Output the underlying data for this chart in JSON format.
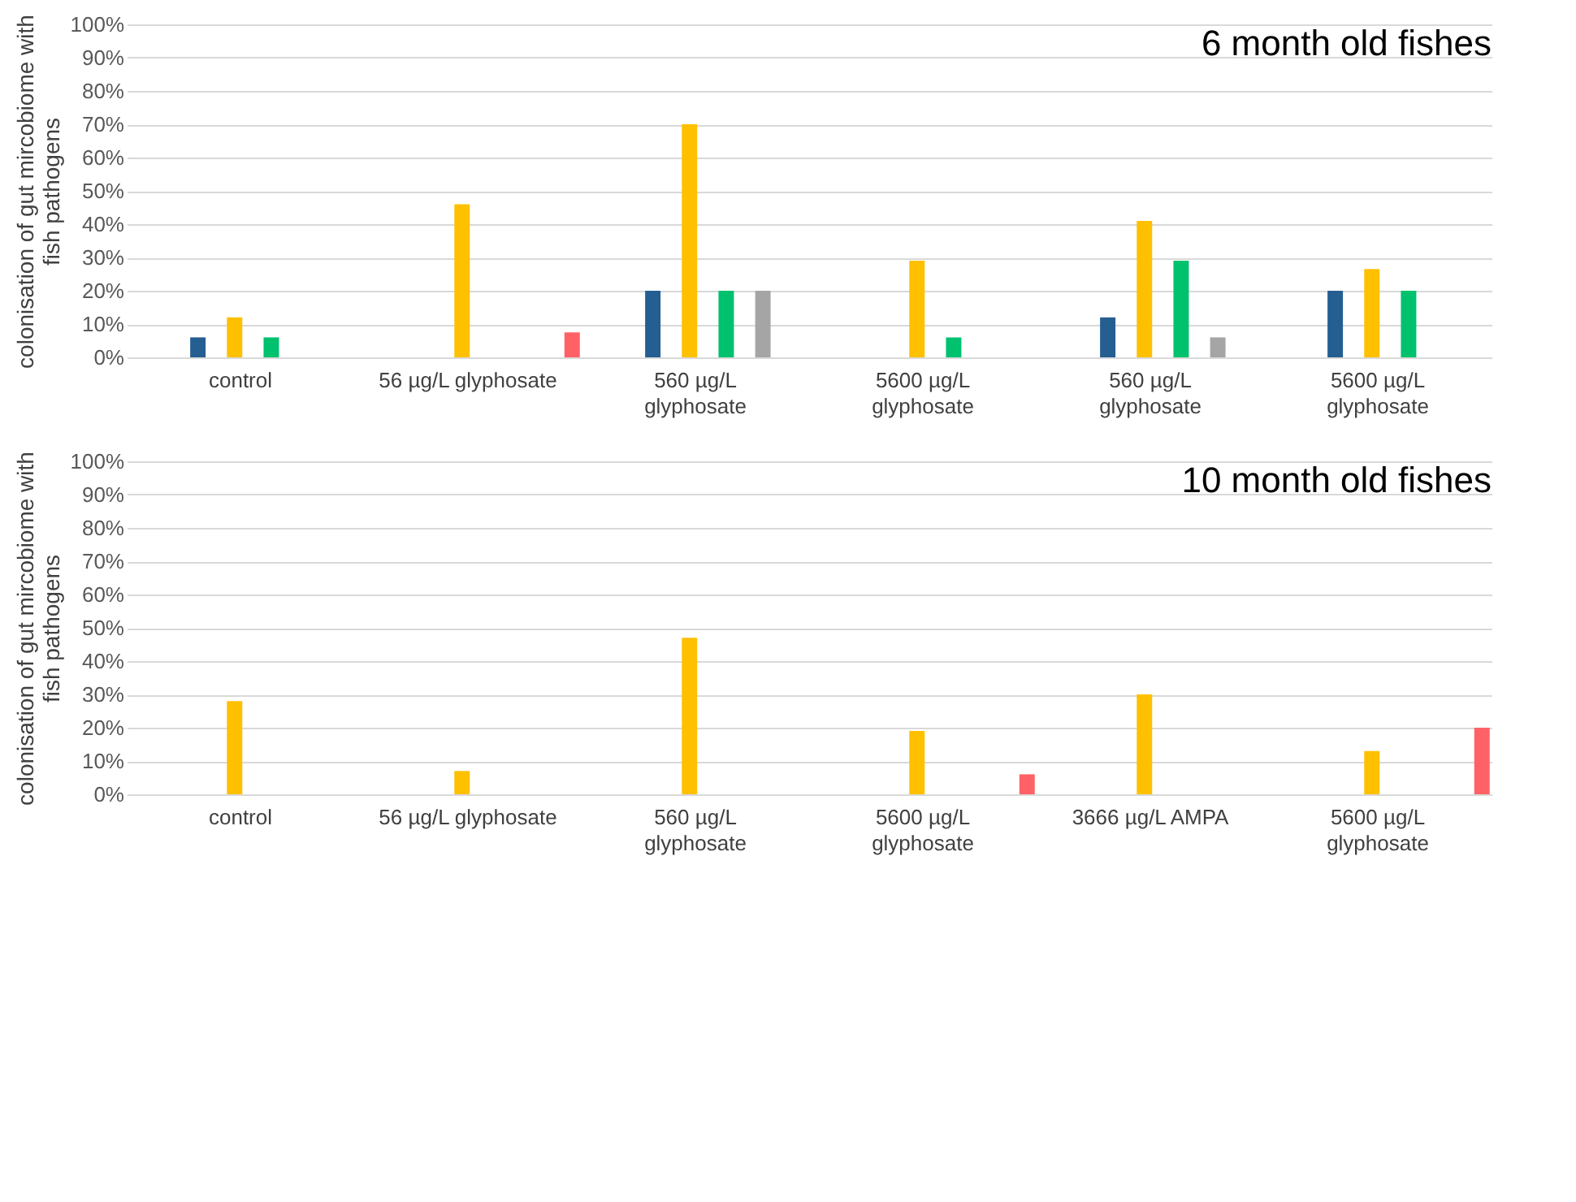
{
  "chart_data": [
    {
      "type": "bar",
      "title": "6 month old fishes",
      "ylabel": "colonisation of gut mircobiome with fish pathogens",
      "categories": [
        "control",
        "56 µg/L glyphosate",
        "560 µg/L glyphosate",
        "5600 µg/L glyphosate",
        "560 µg/L glyphosate",
        "5600 µg/L glyphosate"
      ],
      "series": [
        {
          "color": "#255e91",
          "values": [
            6,
            null,
            20,
            null,
            12,
            20
          ]
        },
        {
          "color": "#ffc000",
          "values": [
            12,
            46,
            70,
            29,
            41,
            26.5
          ]
        },
        {
          "color": "#00c16e",
          "values": [
            6,
            null,
            20,
            6,
            29,
            20
          ]
        },
        {
          "color": "#a5a5a5",
          "values": [
            null,
            null,
            20,
            null,
            6,
            null
          ]
        },
        {
          "color": "#ff6266",
          "values": [
            null,
            7.5,
            null,
            null,
            null,
            null
          ]
        }
      ],
      "ylim": [
        0,
        100
      ],
      "yticks": [
        {
          "value": 0,
          "label": "0%"
        },
        {
          "value": 10,
          "label": "10%"
        },
        {
          "value": 20,
          "label": "20%"
        },
        {
          "value": 30,
          "label": "30%"
        },
        {
          "value": 40,
          "label": "40%"
        },
        {
          "value": 50,
          "label": "50%"
        },
        {
          "value": 60,
          "label": "60%"
        },
        {
          "value": 70,
          "label": "70%"
        },
        {
          "value": 80,
          "label": "80%"
        },
        {
          "value": 90,
          "label": "90%"
        },
        {
          "value": 100,
          "label": "100%"
        }
      ],
      "grid": "y",
      "legend": false
    },
    {
      "type": "bar",
      "title": "10 month old fishes",
      "ylabel": "colonisation of gut mircobiome with fish pathogens",
      "categories": [
        "control",
        "56 µg/L glyphosate",
        "560 µg/L glyphosate",
        "5600 µg/L glyphosate",
        "3666 µg/L AMPA",
        "5600 µg/L glyphosate"
      ],
      "series": [
        {
          "color": "#255e91",
          "values": [
            null,
            null,
            null,
            null,
            null,
            null
          ]
        },
        {
          "color": "#ffc000",
          "values": [
            28,
            7,
            47,
            19,
            30,
            13
          ]
        },
        {
          "color": "#00c16e",
          "values": [
            null,
            null,
            null,
            null,
            null,
            null
          ]
        },
        {
          "color": "#a5a5a5",
          "values": [
            null,
            null,
            null,
            null,
            null,
            null
          ]
        },
        {
          "color": "#ff6266",
          "values": [
            null,
            null,
            null,
            6,
            null,
            20
          ]
        }
      ],
      "ylim": [
        0,
        100
      ],
      "yticks": [
        {
          "value": 0,
          "label": "0%"
        },
        {
          "value": 10,
          "label": "10%"
        },
        {
          "value": 20,
          "label": "20%"
        },
        {
          "value": 30,
          "label": "30%"
        },
        {
          "value": 40,
          "label": "40%"
        },
        {
          "value": 50,
          "label": "50%"
        },
        {
          "value": 60,
          "label": "60%"
        },
        {
          "value": 70,
          "label": "70%"
        },
        {
          "value": 80,
          "label": "80%"
        },
        {
          "value": 90,
          "label": "90%"
        },
        {
          "value": 100,
          "label": "100%"
        }
      ],
      "grid": "y",
      "legend": false
    }
  ]
}
